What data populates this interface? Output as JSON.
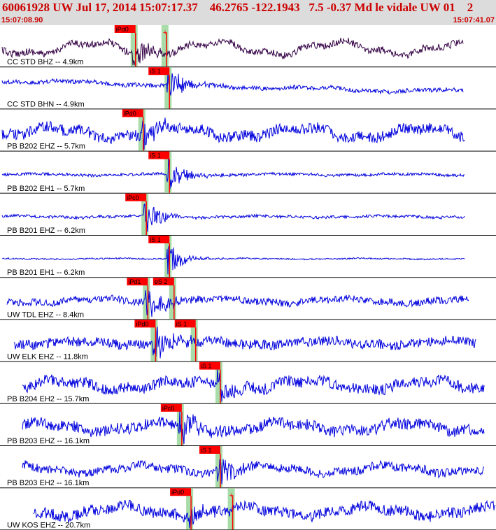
{
  "header": {
    "title": "60061928 UW Jul 17, 2014 15:07:17.37    46.2765 -122.1943   7.5 -0.37 Md le vidale UW 01    2",
    "start_time": "15:07:08.90",
    "end_time": "15:07:41.07"
  },
  "colors": {
    "header_bg": "#dcdcdc",
    "header_text": "#cc0000",
    "trace_first": "#330044",
    "trace": "#0000dd",
    "pick_box": "#ff0000",
    "pick_band": "#a8dca8",
    "predicted_curve": "#000000"
  },
  "chart_data": {
    "type": "line",
    "title": "60061928 UW Jul 17, 2014 15:07:17.37    46.2765 -122.1943   7.5 -0.37 Md le vidale UW 01    2",
    "x_range": [
      "15:07:08.90",
      "15:07:41.07"
    ],
    "x_range_seconds": [
      0,
      32.17
    ],
    "series": [
      {
        "name": "CC STD BHZ -- 4.9km",
        "picks": [
          {
            "label": "iPd0",
            "t": 8.7
          },
          {
            "label": "",
            "t": 10.7
          }
        ]
      },
      {
        "name": "CC STD BHN -- 4.9km",
        "picks": [
          {
            "label": "iS 1",
            "t": 10.9
          }
        ]
      },
      {
        "name": "PB B202 EHZ -- 5.7km",
        "picks": [
          {
            "label": "iPd0",
            "t": 9.2
          }
        ]
      },
      {
        "name": "PB B202 EH1 -- 5.7km",
        "picks": [
          {
            "label": "iS 1",
            "t": 10.9
          }
        ]
      },
      {
        "name": "PB B201 EHZ -- 6.2km",
        "picks": [
          {
            "label": "iPc0",
            "t": 9.4
          }
        ]
      },
      {
        "name": "PB B201 EH1 -- 6.2km",
        "picks": [
          {
            "label": "iS 1",
            "t": 10.9
          }
        ]
      },
      {
        "name": "UW TDL EHZ -- 8.4km",
        "picks": [
          {
            "label": "iPd1",
            "t": 9.5
          },
          {
            "label": "eS 2",
            "t": 11.2
          }
        ]
      },
      {
        "name": "UW ELK EHZ -- 11.8km",
        "picks": [
          {
            "label": "iPd0",
            "t": 10.0
          },
          {
            "label": "iS 1",
            "t": 12.6
          }
        ]
      },
      {
        "name": "PB B204 EH2 -- 15.7km",
        "picks": [
          {
            "label": "iS 1",
            "t": 14.2
          }
        ]
      },
      {
        "name": "PB B203 EHZ -- 16.1km",
        "picks": [
          {
            "label": "iPc0",
            "t": 11.7
          }
        ]
      },
      {
        "name": "PB B203 EH2 -- 16.1km",
        "picks": [
          {
            "label": "iS 1",
            "t": 14.2
          }
        ]
      },
      {
        "name": "UW KOS EHZ -- 20.7km",
        "picks": [
          {
            "label": "iPd0",
            "t": 12.3
          },
          {
            "label": "",
            "t": 15.0
          }
        ]
      }
    ]
  }
}
